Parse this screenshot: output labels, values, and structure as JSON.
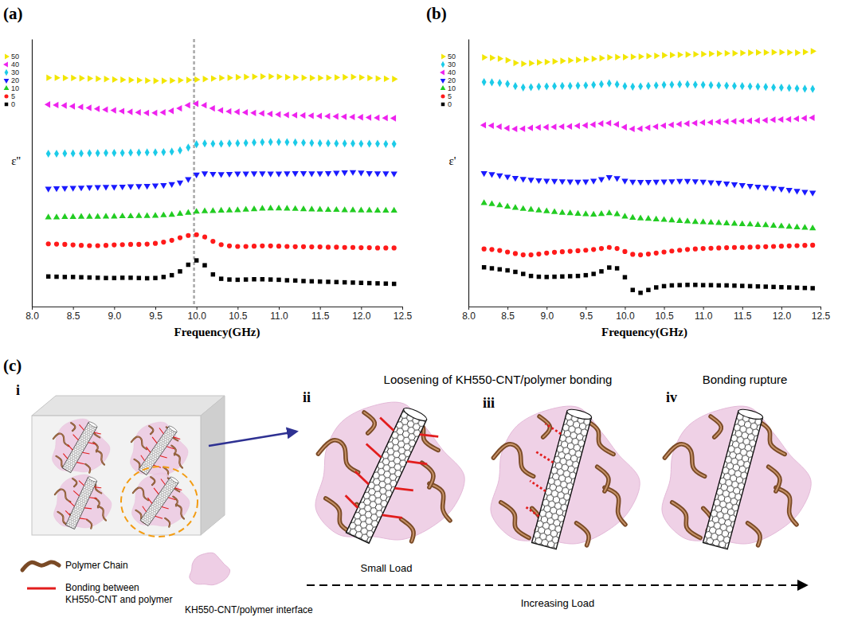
{
  "chart_data": [
    {
      "type": "scatter",
      "panel_label": "(a)",
      "x_label": "Frequency(GHz)",
      "y_label": "ε''",
      "x": [
        8.2,
        8.3,
        8.4,
        8.5,
        8.6,
        8.7,
        8.8,
        8.9,
        9.0,
        9.1,
        9.2,
        9.3,
        9.4,
        9.5,
        9.6,
        9.7,
        9.8,
        9.9,
        10.0,
        10.1,
        10.2,
        10.3,
        10.4,
        10.5,
        10.6,
        10.7,
        10.8,
        10.9,
        11.0,
        11.1,
        11.2,
        11.3,
        11.4,
        11.5,
        11.6,
        11.7,
        11.8,
        11.9,
        12.0,
        12.1,
        12.2,
        12.3,
        12.4
      ],
      "xlim": [
        8,
        12.5
      ],
      "xticks": [
        {
          "value": 8,
          "label": "8.0"
        },
        8.5,
        {
          "value": 9,
          "label": "9.0"
        },
        9.5,
        {
          "value": 10,
          "label": "10.0"
        },
        10.5,
        {
          "value": 11,
          "label": "11.0"
        },
        11.5,
        {
          "value": 12,
          "label": "12.0"
        },
        12.5
      ],
      "ylim": [
        0,
        105
      ],
      "tick_labels": "x",
      "legend": "upper left",
      "reference_x": 9.97,
      "series": [
        {
          "name": "0",
          "color": "#000000",
          "marker": "square",
          "values": [
            11.8,
            11.7,
            11.6,
            11.6,
            11.5,
            11.4,
            11.3,
            11.2,
            11.2,
            11.3,
            11.3,
            11.2,
            11.1,
            11.2,
            11.6,
            12.3,
            13.8,
            16.4,
            18.1,
            16.2,
            12.6,
            10.9,
            10.6,
            10.5,
            10.6,
            10.7,
            10.7,
            10.6,
            10.5,
            10.3,
            10.2,
            10.0,
            9.9,
            9.8,
            9.7,
            9.6,
            9.5,
            9.4,
            9.3,
            9.2,
            9.1,
            9.0,
            8.9
          ]
        },
        {
          "name": "5",
          "color": "#ff1a1a",
          "marker": "circle",
          "values": [
            24.6,
            24.5,
            24.4,
            24.2,
            24.0,
            23.9,
            23.9,
            24.0,
            24.2,
            24.3,
            24.4,
            24.4,
            24.5,
            24.8,
            25.3,
            26.0,
            27.0,
            27.9,
            28.2,
            27.3,
            25.6,
            24.3,
            23.8,
            23.6,
            23.6,
            23.7,
            23.8,
            23.8,
            23.7,
            23.6,
            23.5,
            23.5,
            23.4,
            23.4,
            23.3,
            23.3,
            23.2,
            23.2,
            23.1,
            23.1,
            23.0,
            23.0,
            23.0
          ]
        },
        {
          "name": "10",
          "color": "#22cc22",
          "marker": "triangle-up",
          "values": [
            35.0,
            35.0,
            35.1,
            35.1,
            35.2,
            35.2,
            35.2,
            35.3,
            35.3,
            35.4,
            35.4,
            35.5,
            35.5,
            35.6,
            35.8,
            36.0,
            36.4,
            36.8,
            37.2,
            37.4,
            37.5,
            37.6,
            37.7,
            37.8,
            38.0,
            38.2,
            38.4,
            38.5,
            38.5,
            38.4,
            38.3,
            38.2,
            38.1,
            38.0,
            37.9,
            37.9,
            37.8,
            37.8,
            37.7,
            37.7,
            37.6,
            37.6,
            37.6
          ]
        },
        {
          "name": "20",
          "color": "#1a1aff",
          "marker": "triangle-down",
          "values": [
            46.3,
            46.4,
            46.5,
            46.6,
            46.7,
            46.8,
            46.9,
            47.0,
            47.0,
            47.1,
            47.2,
            47.3,
            47.4,
            47.5,
            47.7,
            48.1,
            48.7,
            50.0,
            51.8,
            52.3,
            52.1,
            52.0,
            52.1,
            52.2,
            52.2,
            52.3,
            52.3,
            52.2,
            52.2,
            52.3,
            52.4,
            52.4,
            52.3,
            52.3,
            52.4,
            52.5,
            52.7,
            52.8,
            52.6,
            52.4,
            52.3,
            52.3,
            52.2
          ]
        },
        {
          "name": "30",
          "color": "#1ccbe8",
          "marker": "diamond",
          "values": [
            60.0,
            60.0,
            60.1,
            60.1,
            60.1,
            60.2,
            60.2,
            60.3,
            60.3,
            60.3,
            60.4,
            60.4,
            60.5,
            60.5,
            60.6,
            60.8,
            61.3,
            62.4,
            63.7,
            64.0,
            63.9,
            63.9,
            64.0,
            64.1,
            64.2,
            64.4,
            64.5,
            64.6,
            64.6,
            64.5,
            64.4,
            64.3,
            64.2,
            64.1,
            64.1,
            64.0,
            64.0,
            64.0,
            63.9,
            63.9,
            63.9,
            63.8,
            63.8
          ]
        },
        {
          "name": "40",
          "color": "#ee22ee",
          "marker": "triangle-left",
          "values": [
            79.3,
            79.1,
            78.9,
            78.6,
            78.3,
            78.0,
            77.6,
            77.3,
            77.0,
            76.7,
            76.4,
            76.2,
            76.0,
            76.0,
            76.2,
            76.8,
            77.8,
            79.0,
            79.6,
            79.0,
            77.8,
            77.0,
            76.6,
            76.4,
            76.2,
            76.0,
            75.8,
            75.6,
            75.4,
            75.2,
            75.1,
            75.0,
            74.9,
            74.8,
            74.7,
            74.6,
            74.5,
            74.4,
            74.3,
            74.2,
            74.1,
            74.0,
            73.9
          ]
        },
        {
          "name": "50",
          "color": "#f2e600",
          "marker": "triangle-right",
          "values": [
            89.8,
            89.8,
            89.7,
            89.7,
            89.6,
            89.5,
            89.4,
            89.3,
            89.1,
            89.0,
            88.9,
            88.8,
            88.7,
            88.6,
            88.6,
            88.7,
            88.8,
            88.9,
            89.1,
            89.3,
            89.5,
            89.7,
            89.8,
            90.0,
            90.1,
            90.2,
            90.3,
            90.3,
            90.2,
            90.0,
            89.9,
            89.8,
            89.7,
            89.7,
            89.8,
            89.9,
            90.0,
            90.1,
            89.9,
            89.7,
            89.5,
            89.4,
            89.3
          ]
        }
      ]
    },
    {
      "type": "scatter",
      "panel_label": "(b)",
      "x_label": "Frequency(GHz)",
      "y_label": "ε'",
      "x": [
        8.2,
        8.3,
        8.4,
        8.5,
        8.6,
        8.7,
        8.8,
        8.9,
        9.0,
        9.1,
        9.2,
        9.3,
        9.4,
        9.5,
        9.6,
        9.7,
        9.8,
        9.9,
        10.0,
        10.1,
        10.2,
        10.3,
        10.4,
        10.5,
        10.6,
        10.7,
        10.8,
        10.9,
        11.0,
        11.1,
        11.2,
        11.3,
        11.4,
        11.5,
        11.6,
        11.7,
        11.8,
        11.9,
        12.0,
        12.1,
        12.2,
        12.3,
        12.4
      ],
      "xlim": [
        8,
        12.5
      ],
      "xticks": [
        {
          "value": 8,
          "label": "8.0"
        },
        8.5,
        {
          "value": 9,
          "label": "9.0"
        },
        9.5,
        {
          "value": 10,
          "label": "10.0"
        },
        10.5,
        {
          "value": 11,
          "label": "11.0"
        },
        11.5,
        {
          "value": 12,
          "label": "12.0"
        },
        12.5
      ],
      "ylim": [
        0,
        105
      ],
      "tick_labels": "x",
      "legend": "upper left",
      "series": [
        {
          "name": "0",
          "color": "#000000",
          "marker": "square",
          "values": [
            15.4,
            15.0,
            14.6,
            14.2,
            13.6,
            12.8,
            12.0,
            11.7,
            11.6,
            11.7,
            11.8,
            11.9,
            12.0,
            12.3,
            12.8,
            13.8,
            15.3,
            15.0,
            11.5,
            6.5,
            5.4,
            6.5,
            7.5,
            8.0,
            8.3,
            8.4,
            8.5,
            8.5,
            8.4,
            8.4,
            8.3,
            8.3,
            8.2,
            8.1,
            8.0,
            7.9,
            7.8,
            7.7,
            7.6,
            7.5,
            7.4,
            7.3,
            7.2
          ]
        },
        {
          "name": "5",
          "color": "#ff1a1a",
          "marker": "circle",
          "values": [
            22.6,
            22.4,
            22.0,
            21.4,
            20.8,
            20.3,
            20.3,
            20.6,
            21.0,
            21.3,
            21.5,
            21.7,
            21.9,
            22.1,
            22.4,
            22.8,
            23.2,
            22.8,
            21.6,
            20.5,
            20.3,
            20.6,
            21.0,
            21.4,
            21.8,
            22.1,
            22.4,
            22.6,
            22.8,
            22.9,
            23.0,
            23.1,
            23.2,
            23.2,
            23.3,
            23.4,
            23.5,
            23.6,
            23.7,
            23.8,
            23.9,
            24.0,
            24.1
          ]
        },
        {
          "name": "10",
          "color": "#22cc22",
          "marker": "triangle-up",
          "values": [
            40.6,
            40.2,
            39.7,
            39.2,
            38.7,
            38.3,
            38.0,
            37.7,
            37.4,
            37.1,
            36.8,
            36.6,
            36.4,
            36.2,
            36.1,
            36.3,
            36.6,
            36.2,
            35.3,
            34.8,
            34.6,
            34.4,
            34.2,
            34.0,
            33.8,
            33.6,
            33.4,
            33.2,
            33.1,
            32.9,
            32.8,
            32.6,
            32.5,
            32.3,
            32.2,
            32.0,
            31.9,
            31.7,
            31.5,
            31.3,
            31.1,
            30.9,
            30.7
          ]
        },
        {
          "name": "20",
          "color": "#1a1aff",
          "marker": "triangle-down",
          "values": [
            52.4,
            52.0,
            51.5,
            51.0,
            50.5,
            50.1,
            49.8,
            49.6,
            49.4,
            49.3,
            49.2,
            49.1,
            49.0,
            49.1,
            49.4,
            50.0,
            50.8,
            50.4,
            49.4,
            49.0,
            48.9,
            48.9,
            49.0,
            49.1,
            49.2,
            49.3,
            49.3,
            49.2,
            49.0,
            48.8,
            48.6,
            48.3,
            48.0,
            47.7,
            47.4,
            47.1,
            46.8,
            46.5,
            46.2,
            45.8,
            45.4,
            45.0,
            44.7
          ]
        },
        {
          "name": "40",
          "color": "#ee22ee",
          "marker": "triangle-left",
          "values": [
            71.2,
            71.0,
            70.6,
            70.0,
            69.7,
            69.8,
            70.1,
            70.3,
            70.4,
            70.5,
            70.6,
            70.7,
            70.9,
            71.1,
            71.4,
            71.8,
            72.0,
            71.5,
            70.4,
            69.7,
            69.8,
            70.2,
            70.6,
            71.0,
            71.3,
            71.6,
            71.8,
            72.0,
            72.2,
            72.3,
            72.5,
            72.6,
            72.7,
            72.8,
            72.9,
            73.0,
            73.1,
            73.3,
            73.4,
            73.5,
            73.7,
            73.9,
            74.1
          ]
        },
        {
          "name": "30",
          "color": "#1ccbe8",
          "marker": "diamond",
          "values": [
            88.1,
            88.0,
            87.8,
            87.4,
            86.5,
            86.0,
            86.1,
            86.3,
            86.4,
            86.5,
            86.6,
            86.6,
            86.7,
            86.8,
            87.0,
            87.3,
            87.6,
            87.2,
            86.5,
            86.3,
            86.4,
            86.6,
            86.8,
            87.0,
            87.1,
            87.2,
            87.2,
            87.1,
            87.0,
            86.9,
            86.8,
            86.7,
            86.6,
            86.5,
            86.4,
            86.3,
            86.2,
            86.0,
            85.9,
            85.8,
            85.6,
            85.5,
            85.4
          ]
        },
        {
          "name": "50",
          "color": "#f2e600",
          "marker": "triangle-right",
          "values": [
            97.8,
            97.6,
            97.3,
            96.7,
            95.6,
            95.3,
            95.5,
            95.8,
            96.0,
            96.2,
            96.4,
            96.6,
            96.8,
            97.0,
            97.2,
            97.5,
            97.8,
            97.9,
            97.9,
            98.0,
            98.1,
            98.3,
            98.4,
            98.6,
            98.7,
            98.8,
            98.9,
            99.0,
            99.1,
            99.2,
            99.3,
            99.4,
            99.4,
            99.5,
            99.6,
            99.7,
            99.7,
            99.8,
            99.8,
            99.7,
            99.6,
            99.9,
            100.2
          ]
        }
      ]
    }
  ],
  "diagram": {
    "panel_label": "(c)",
    "steps": [
      {
        "label": "i"
      },
      {
        "label": "ii",
        "caption": "Small Load"
      },
      {
        "label": "iii"
      },
      {
        "label": "iv",
        "title": "Bonding rupture"
      }
    ],
    "group_title": "Loosening of KH550-CNT/polymer bonding",
    "arrow_label": "Increasing Load",
    "legend": [
      {
        "label": "Polymer Chain"
      },
      {
        "label": "Bonding between KH550-CNT and polymer"
      },
      {
        "label": "KH550-CNT/polymer interface"
      }
    ]
  }
}
